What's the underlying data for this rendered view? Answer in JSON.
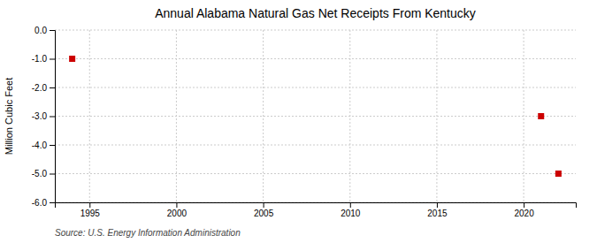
{
  "chart_data": {
    "type": "scatter",
    "title": "Annual Alabama Natural Gas Net Receipts From Kentucky",
    "y_label": "Million Cubic Feet",
    "source": "Source: U.S. Energy Information Administration",
    "x": [
      1994,
      2021,
      2022
    ],
    "values": [
      -1.0,
      -3.0,
      -5.0
    ],
    "color": "#cc0000",
    "marker": "square",
    "xlim": [
      1993,
      2023
    ],
    "xticks": [
      1995,
      2000,
      2005,
      2010,
      2015,
      2020
    ],
    "ylim": [
      -6,
      0
    ],
    "yticks": [
      {
        "value": 0,
        "label": "0.0"
      },
      {
        "value": -1,
        "label": "-1.0"
      },
      {
        "value": -2,
        "label": "-2.0"
      },
      {
        "value": -3,
        "label": "-3.0"
      },
      {
        "value": -4,
        "label": "-4.0"
      },
      {
        "value": -5,
        "label": "-5.0"
      },
      {
        "value": -6,
        "label": "-6.0"
      }
    ],
    "grid": true
  }
}
